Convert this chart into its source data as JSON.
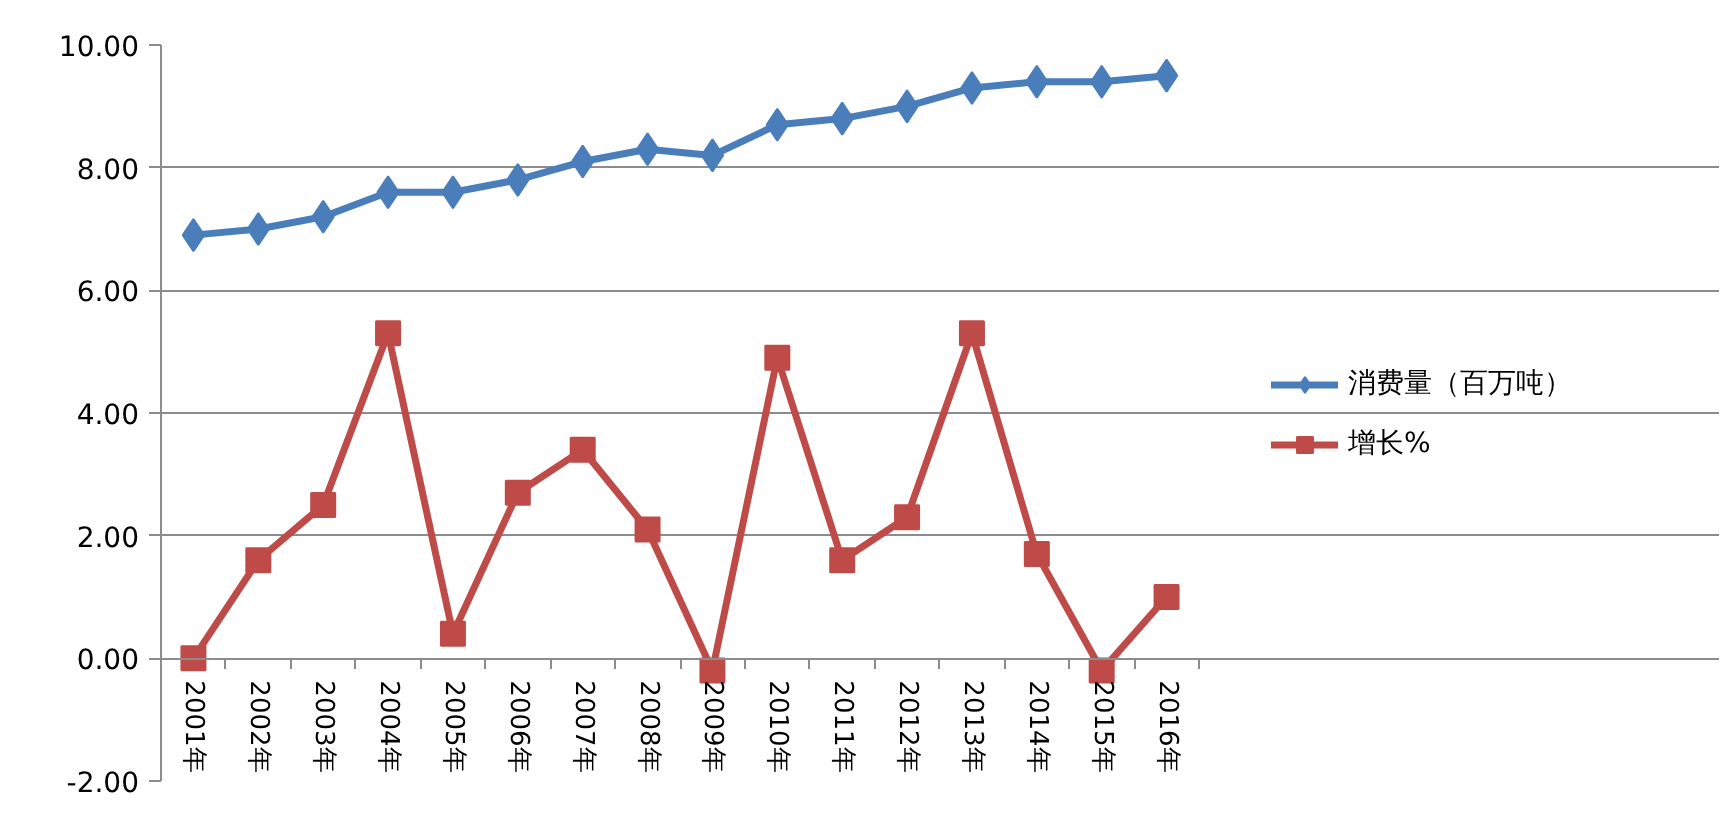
{
  "chart_data": {
    "type": "line",
    "categories": [
      "2001年",
      "2002年",
      "2003年",
      "2004年",
      "2005年",
      "2006年",
      "2007年",
      "2008年",
      "2009年",
      "2010年",
      "2011年",
      "2012年",
      "2013年",
      "2014年",
      "2015年",
      "2016年"
    ],
    "series": [
      {
        "name": "消费量（百万吨）",
        "color": "#4a7ebb",
        "marker": "diamond",
        "values": [
          6.9,
          7.0,
          7.2,
          7.6,
          7.6,
          7.8,
          8.1,
          8.3,
          8.2,
          8.7,
          8.8,
          9.0,
          9.3,
          9.4,
          9.4,
          9.5
        ]
      },
      {
        "name": "增长%",
        "color": "#be4b48",
        "marker": "square",
        "values": [
          0.0,
          1.6,
          2.5,
          5.3,
          0.4,
          2.7,
          3.4,
          2.1,
          -0.2,
          4.9,
          1.6,
          2.3,
          5.3,
          1.7,
          -0.2,
          1.0
        ]
      }
    ],
    "ylim": [
      -2,
      10
    ],
    "yticks": [
      {
        "value": -2,
        "label": "-2.00"
      },
      {
        "value": 0,
        "label": "0.00"
      },
      {
        "value": 2,
        "label": "2.00"
      },
      {
        "value": 4,
        "label": "4.00"
      },
      {
        "value": 6,
        "label": "6.00"
      },
      {
        "value": 8,
        "label": "8.00"
      },
      {
        "value": 10,
        "label": "10.00"
      }
    ],
    "grid": "y",
    "legend": "right"
  }
}
